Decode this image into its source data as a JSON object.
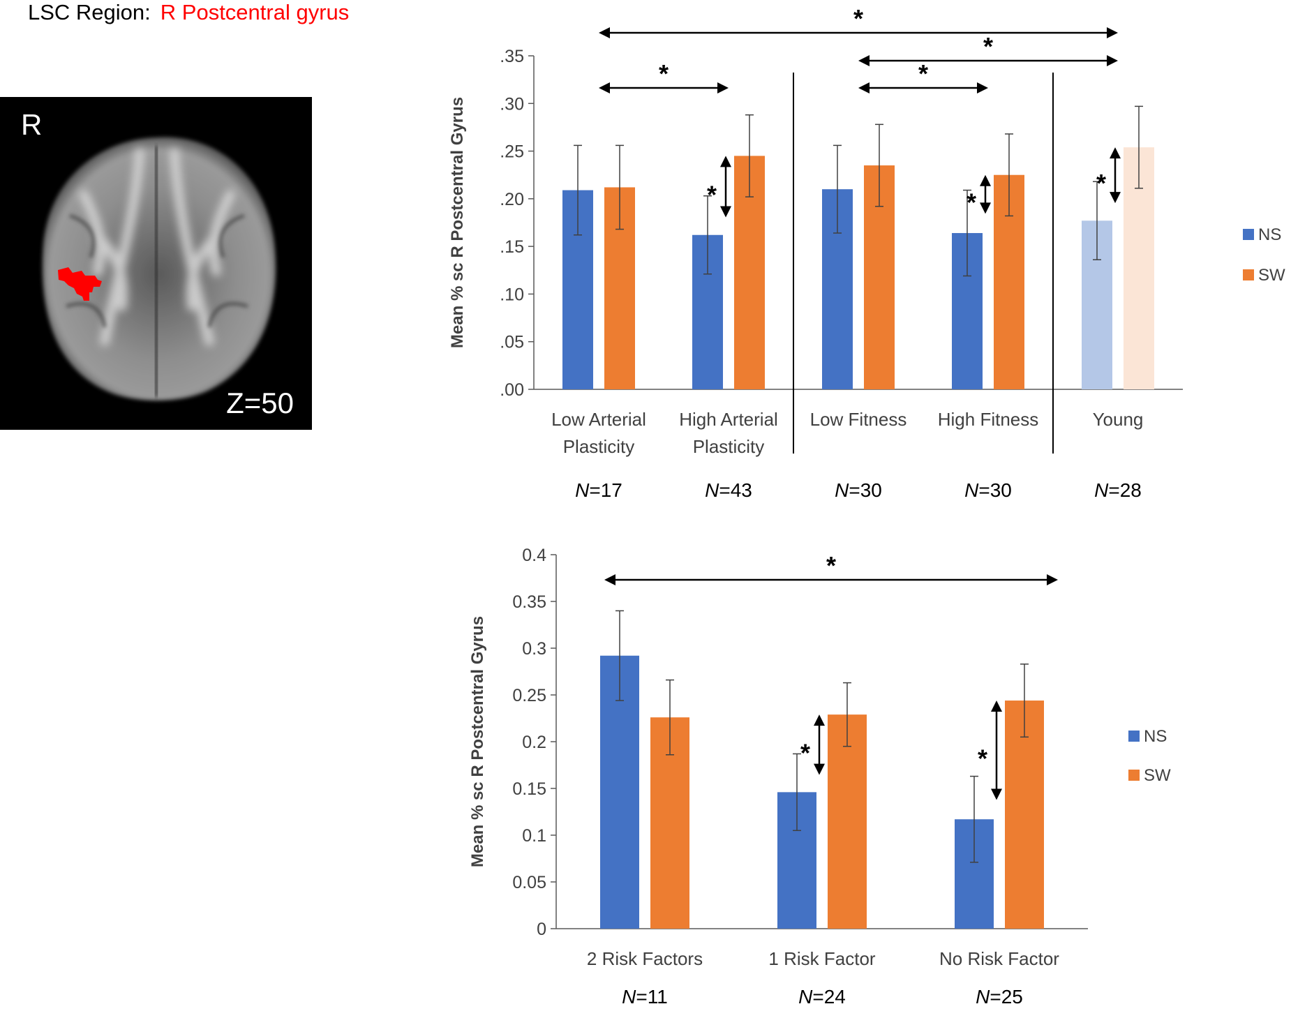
{
  "header": {
    "label": "LSC Region:",
    "region": "R Postcentral gyrus"
  },
  "brain_image": {
    "side_label": "R",
    "slice_label": "Z=50"
  },
  "colors": {
    "NS": "#4472c4",
    "SW": "#ed7d31",
    "NS_light": "#b4c7e7",
    "SW_light": "#fbe5d6",
    "region": "#ff0000",
    "text": "#404040"
  },
  "chart_data": [
    {
      "id": "top",
      "type": "bar",
      "ylabel": "Mean % sc R Postcentral Gyrus",
      "ylim": [
        0,
        0.35
      ],
      "yticks": [
        ".00",
        ".05",
        ".10",
        ".15",
        ".20",
        ".25",
        ".30",
        ".35"
      ],
      "categories": [
        "Low Arterial\nPlasticity",
        "High Arterial\nPlasticity",
        "Low Fitness",
        "High Fitness",
        "Young"
      ],
      "n_labels": [
        "17",
        "43",
        "30",
        "30",
        "28"
      ],
      "n_prefix": "N",
      "series": [
        {
          "name": "NS",
          "values": [
            0.209,
            0.162,
            0.21,
            0.164,
            0.177
          ],
          "errors": [
            0.047,
            0.041,
            0.046,
            0.045,
            0.041
          ]
        },
        {
          "name": "SW",
          "values": [
            0.212,
            0.245,
            0.235,
            0.225,
            0.254
          ],
          "errors": [
            0.044,
            0.043,
            0.043,
            0.043,
            0.043
          ]
        }
      ],
      "faded_categories": [
        4
      ],
      "legend": [
        "NS",
        "SW"
      ],
      "significance_label": "*",
      "between_group_comparisons": [
        {
          "from": 0,
          "to": 4
        },
        {
          "from": 2,
          "to": 4
        },
        {
          "from": 0,
          "to": 1
        },
        {
          "from": 2,
          "to": 3
        }
      ],
      "within_group_comparisons": [
        1,
        3,
        4
      ],
      "group_dividers_after": [
        1,
        3
      ]
    },
    {
      "id": "bottom",
      "type": "bar",
      "ylabel": "Mean % sc R Postcentral Gyrus",
      "ylim": [
        0,
        0.4
      ],
      "yticks": [
        "0",
        "0.05",
        "0.1",
        "0.15",
        "0.2",
        "0.25",
        "0.3",
        "0.35",
        "0.4"
      ],
      "categories": [
        "2 Risk Factors",
        "1 Risk Factor",
        "No Risk Factor"
      ],
      "n_labels": [
        "11",
        "24",
        "25"
      ],
      "n_prefix": "N",
      "series": [
        {
          "name": "NS",
          "values": [
            0.292,
            0.146,
            0.117
          ],
          "errors": [
            0.048,
            0.041,
            0.046
          ]
        },
        {
          "name": "SW",
          "values": [
            0.226,
            0.229,
            0.244
          ],
          "errors": [
            0.04,
            0.034,
            0.039
          ]
        }
      ],
      "faded_categories": [],
      "legend": [
        "NS",
        "SW"
      ],
      "significance_label": "*",
      "between_group_comparisons": [
        {
          "from": 0,
          "to": 2
        }
      ],
      "within_group_comparisons": [
        1,
        2
      ],
      "group_dividers_after": []
    }
  ]
}
